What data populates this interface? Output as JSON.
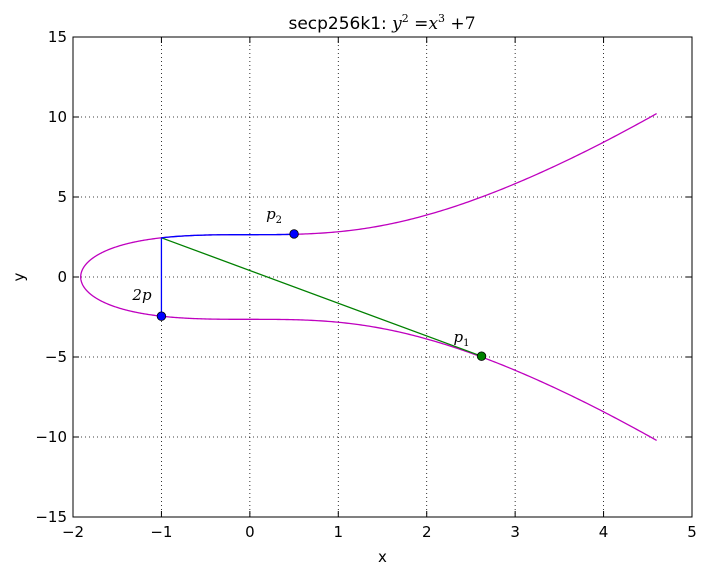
{
  "chart_data": {
    "type": "line",
    "title": {
      "prefix": "secp256k1: ",
      "eq_y": "y",
      "eq_y_exp": "2",
      "eq_eq": " =",
      "eq_x": "x",
      "eq_x_exp": "3",
      "eq_plus": " +",
      "eq_const": "7"
    },
    "xlabel": "x",
    "ylabel": "y",
    "xlim": [
      -2,
      5
    ],
    "ylim": [
      -15,
      15
    ],
    "x_ticks": [
      -2,
      -1,
      0,
      1,
      2,
      3,
      4,
      5
    ],
    "y_ticks": [
      -15,
      -10,
      -5,
      0,
      5,
      10,
      15
    ],
    "x_tick_labels": [
      "−2",
      "−1",
      "0",
      "1",
      "2",
      "3",
      "4",
      "5"
    ],
    "y_tick_labels": [
      "−15",
      "−10",
      "−5",
      "0",
      "5",
      "10",
      "15"
    ],
    "grid": true,
    "curve": {
      "equation": "y^2 = x^3 + 7",
      "x_max": 4.6,
      "color": "#bf00bf"
    },
    "points": [
      {
        "label_base": "p",
        "label_sub": "1",
        "x": 2.62,
        "y": -4.95,
        "color": "#008000"
      },
      {
        "label_base": "p",
        "label_sub": "2",
        "x": 0.5,
        "y": 2.69,
        "color": "#0000ff"
      },
      {
        "label_base": "2p",
        "label_sub": "",
        "x": -1.0,
        "y": -2.45,
        "color": "#0000ff"
      }
    ],
    "lines": [
      {
        "from": [
          -1.0,
          2.45
        ],
        "to": [
          2.62,
          -4.95
        ],
        "color": "#008000"
      },
      {
        "from": [
          -1.0,
          2.45
        ],
        "to": [
          -1.0,
          -2.45
        ],
        "color": "#0000ff"
      }
    ],
    "segments_on_curve": [
      {
        "x_from": -1.0,
        "x_to": 0.5,
        "branch": "upper",
        "color": "#0000ff"
      }
    ]
  }
}
